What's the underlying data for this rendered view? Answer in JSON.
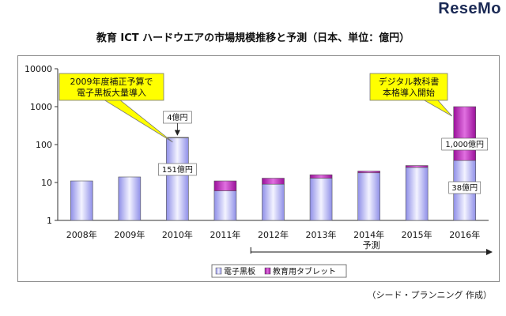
{
  "watermark": "ReseMo",
  "chart_data": {
    "type": "bar",
    "stacked": true,
    "title": "教育 ICT ハードウエアの市場規模推移と予測（日本、単位：億円）",
    "y_scale": "log",
    "ylim": [
      1,
      10000
    ],
    "y_ticks": [
      "1",
      "10",
      "100",
      "1000",
      "10000"
    ],
    "categories": [
      "2008年",
      "2009年",
      "2010年",
      "2011年",
      "2012年",
      "2013年",
      "2014年",
      "2015年",
      "2016年"
    ],
    "series": [
      {
        "name": "電子黒板",
        "color": "#b9b9f5",
        "values": [
          11,
          14,
          151,
          6,
          9,
          13,
          18,
          25,
          38
        ]
      },
      {
        "name": "教育用タブレット",
        "color": "#b31fb3",
        "values": [
          0,
          0,
          4,
          5,
          4,
          3,
          2,
          3,
          962
        ]
      }
    ],
    "legend_position": "bottom",
    "forecast_label": "予測",
    "annotations": {
      "callout_2010": "2009年度補正予算で\n電子黒板大量導入",
      "callout_2016": "デジタル教科書\n本格導入開始",
      "label_2010_tablet": "4億円",
      "label_2010_board": "151億円",
      "label_2016_total": "1,000億円",
      "label_2016_board": "38億円"
    }
  },
  "credit": "（シード・プランニング 作成）"
}
